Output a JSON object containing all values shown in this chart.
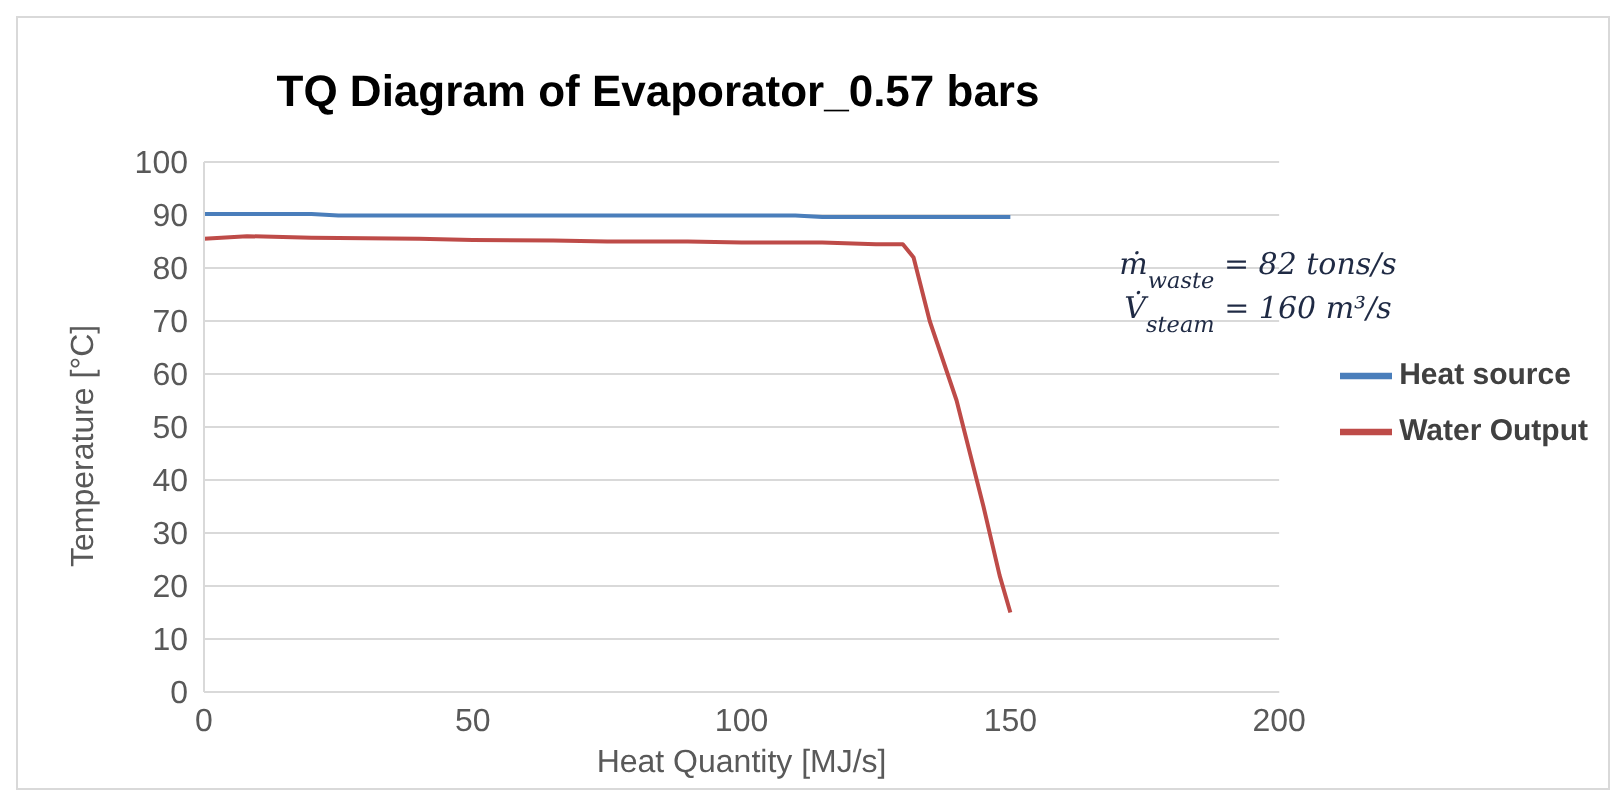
{
  "chart_data": {
    "type": "line",
    "title": "TQ Diagram of Evaporator_0.57 bars",
    "xlabel": "Heat Quantity [MJ/s]",
    "ylabel": "Temperature [°C]",
    "annotations": [
      "ṁ$_{waste}$ = 82 tons/s",
      "V̇$_{steam}$ = 160 m³/s"
    ],
    "series": [
      {
        "name": "Heat source",
        "color": "#4a7ebb",
        "x": [
          0,
          20,
          25,
          110,
          115,
          150
        ],
        "values": [
          90.2,
          90.2,
          89.9,
          89.9,
          89.6,
          89.6
        ]
      },
      {
        "name": "Water Output",
        "color": "#be4b48",
        "x": [
          0,
          8,
          20,
          40,
          50,
          65,
          75,
          90,
          100,
          115,
          125,
          130,
          132,
          135,
          140,
          145,
          148,
          150
        ],
        "values": [
          85.5,
          86,
          85.7,
          85.5,
          85.3,
          85.2,
          85,
          85,
          84.8,
          84.8,
          84.5,
          84.5,
          82,
          70,
          55,
          35,
          22,
          15
        ]
      }
    ],
    "xlim": [
      0,
      200
    ],
    "xticks": [
      0,
      50,
      100,
      150,
      200
    ],
    "ylim": [
      0,
      100
    ],
    "yticks": [
      0,
      10,
      20,
      30,
      40,
      50,
      60,
      70,
      80,
      90,
      100
    ],
    "grid": "y",
    "legend": "right",
    "marker": "none",
    "line_style": "solid"
  }
}
